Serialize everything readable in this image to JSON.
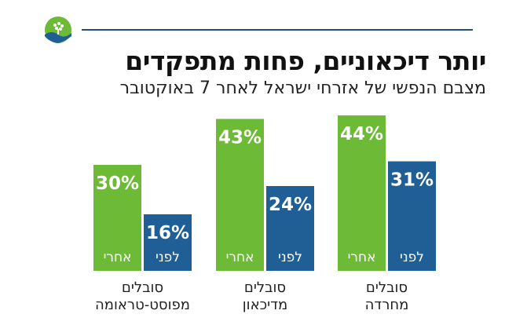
{
  "colors": {
    "after": "#6cba36",
    "before": "#1f5f96",
    "rule": "#1f4e79"
  },
  "logo_icon": "tree-wave-logo-icon",
  "chart_data": {
    "type": "bar",
    "title": "יותר דיכאוניים, פחות מתפקדים",
    "subtitle": "מצבם הנפשי של אזרחי ישראל לאחר 7 באוקטובר",
    "ylim": [
      0,
      50
    ],
    "grid": false,
    "legend": "none",
    "groups": [
      {
        "category": [
          "סובלים",
          "מחרדה"
        ],
        "after": {
          "label": "אחרי",
          "value": 44,
          "text": "44%"
        },
        "before": {
          "label": "לפני",
          "value": 31,
          "text": "31%"
        }
      },
      {
        "category": [
          "סובלים",
          "מדיכאון"
        ],
        "after": {
          "label": "אחרי",
          "value": 43,
          "text": "43%"
        },
        "before": {
          "label": "לפני",
          "value": 24,
          "text": "24%"
        }
      },
      {
        "category": [
          "סובלים",
          "מפוסט-טראומה"
        ],
        "after": {
          "label": "אחרי",
          "value": 30,
          "text": "30%"
        },
        "before": {
          "label": "לפני",
          "value": 16,
          "text": "16%"
        }
      }
    ]
  }
}
